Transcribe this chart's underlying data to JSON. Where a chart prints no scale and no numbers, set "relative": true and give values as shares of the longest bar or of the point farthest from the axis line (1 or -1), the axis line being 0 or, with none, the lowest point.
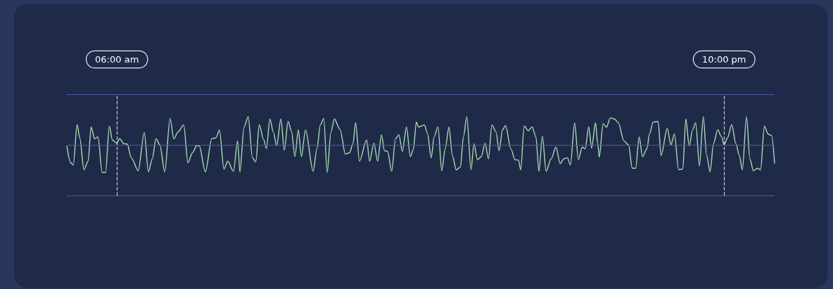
{
  "chart_data": {
    "type": "line",
    "relative": true,
    "tick_labels": "x",
    "grid": false,
    "marker": "none",
    "line_style": "solid",
    "xlim": [
      4.68,
      23.33
    ],
    "xticks": [
      {
        "value": 6,
        "label": "06:00 am"
      },
      {
        "value": 22,
        "label": "10:00 pm"
      }
    ],
    "series": [
      {
        "color": "#a8dcb5",
        "x": [
          4.68,
          4.78,
          4.85,
          4.95,
          5.02,
          5.13,
          5.24,
          5.32,
          5.41,
          5.5,
          5.61,
          5.7,
          5.8,
          5.88,
          6.0,
          6.07,
          6.19,
          6.27,
          6.38,
          6.56,
          6.72,
          6.83,
          6.93,
          7.03,
          7.13,
          7.26,
          7.4,
          7.5,
          7.61,
          7.76,
          7.87,
          7.99,
          8.1,
          8.17,
          8.33,
          8.5,
          8.61,
          8.7,
          8.82,
          8.92,
          9.07,
          9.18,
          9.24,
          9.35,
          9.46,
          9.57,
          9.66,
          9.75,
          9.86,
          9.94,
          10.03,
          10.12,
          10.21,
          10.32,
          10.41,
          10.51,
          10.6,
          10.69,
          10.78,
          10.86,
          10.97,
          11.17,
          11.27,
          11.36,
          11.45,
          11.54,
          11.64,
          11.73,
          11.88,
          12.02,
          12.13,
          12.22,
          12.29,
          12.39,
          12.58,
          12.66,
          12.77,
          12.87,
          12.97,
          13.05,
          13.13,
          13.24,
          13.34,
          13.43,
          13.52,
          13.63,
          13.73,
          13.81,
          13.89,
          13.95,
          14.1,
          14.18,
          14.28,
          14.36,
          14.46,
          14.56,
          14.65,
          14.75,
          14.84,
          14.94,
          15.05,
          15.13,
          15.22,
          15.33,
          15.41,
          15.5,
          15.6,
          15.7,
          15.79,
          15.88,
          15.99,
          16.07,
          16.16,
          16.24,
          16.38,
          16.49,
          16.58,
          16.64,
          16.73,
          16.84,
          16.94,
          17.04,
          17.12,
          17.21,
          17.31,
          17.44,
          17.57,
          17.68,
          17.77,
          17.87,
          17.95,
          18.06,
          18.16,
          18.26,
          18.34,
          18.43,
          18.51,
          18.61,
          18.67,
          18.71,
          18.81,
          18.9,
          19.0,
          19.11,
          19.21,
          19.36,
          19.48,
          19.58,
          19.67,
          19.76,
          19.85,
          19.97,
          20.03,
          20.13,
          20.26,
          20.34,
          20.5,
          20.6,
          20.69,
          20.8,
          20.91,
          20.99,
          21.08,
          21.17,
          21.25,
          21.35,
          21.45,
          21.54,
          21.63,
          21.72,
          21.83,
          21.93,
          22.0,
          22.09,
          22.2,
          22.31,
          22.4,
          22.48,
          22.59,
          22.68,
          22.77,
          22.88,
          22.96,
          23.06,
          23.16,
          23.25,
          23.33
        ],
        "values": [
          -0.04,
          -0.63,
          -0.72,
          0.72,
          0.25,
          -0.88,
          -0.58,
          0.63,
          0.22,
          0.28,
          -0.98,
          -0.98,
          0.67,
          0.17,
          0.06,
          0.22,
          0.04,
          0.03,
          -0.46,
          -0.92,
          0.44,
          -0.96,
          -0.5,
          0.22,
          0,
          -0.96,
          0.94,
          0.21,
          0.46,
          0.71,
          -0.64,
          -0.28,
          -0.03,
          -0.03,
          -0.96,
          0.22,
          0.25,
          0.53,
          -0.86,
          -0.58,
          -0.94,
          0.14,
          -0.96,
          0.63,
          1.0,
          -0.46,
          -0.61,
          0.72,
          0.21,
          -0.13,
          0.92,
          0.46,
          -0.03,
          0.92,
          -0.19,
          0.83,
          0.48,
          -0.42,
          0.53,
          -0.42,
          0.53,
          -0.94,
          -0.14,
          0.71,
          0.94,
          -0.98,
          0.46,
          0.92,
          0.54,
          -0.33,
          -0.28,
          0.04,
          0.79,
          -0.58,
          0.17,
          -0.58,
          0.06,
          -0.58,
          0.36,
          -0.21,
          -0.23,
          -0.94,
          0.21,
          0.36,
          -0.23,
          0.63,
          -0.42,
          -0.17,
          0.81,
          0.63,
          0.71,
          0.42,
          -0.46,
          0.29,
          0.64,
          -0.92,
          -0.13,
          0.63,
          -0.38,
          -0.89,
          -0.79,
          0.29,
          1.0,
          -0.88,
          0.04,
          -0.53,
          -0.42,
          0.06,
          -0.5,
          0.71,
          0.46,
          -0.21,
          0.53,
          0.69,
          -0.14,
          -0.53,
          -0.54,
          -0.89,
          0.67,
          0.5,
          0.64,
          0.28,
          -0.94,
          0.31,
          -0.94,
          -0.5,
          -0.08,
          -0.67,
          -0.5,
          -0.46,
          -0.72,
          0.78,
          -0.53,
          -0.08,
          -0.14,
          0.64,
          -0.11,
          0.78,
          0.04,
          -0.44,
          0.75,
          0.63,
          0.96,
          0.92,
          0.79,
          0.14,
          0,
          -0.83,
          -0.83,
          0.28,
          -0.42,
          -0.13,
          0.38,
          0.81,
          0.83,
          -0.38,
          0.58,
          0,
          0.39,
          -0.88,
          -0.86,
          0.92,
          -0.04,
          0.54,
          0.78,
          -0.75,
          1.0,
          -0.38,
          -0.96,
          0.04,
          0.54,
          0.29,
          0,
          0.25,
          0.72,
          0.04,
          -0.38,
          -0.89,
          1.0,
          -0.5,
          -0.92,
          -0.83,
          -0.89,
          0.67,
          0.38,
          0.33,
          -0.67
        ]
      }
    ],
    "ref_lines": [
      {
        "axis": "y",
        "value": 1.8,
        "color": "#4a5aa8",
        "line_style": "solid"
      },
      {
        "axis": "y",
        "value": 0,
        "color": "#4a5aa8",
        "line_style": "solid"
      },
      {
        "axis": "y",
        "value": -1.8,
        "color": "#4a5aa8",
        "line_style": "solid"
      },
      {
        "axis": "x",
        "value": 6,
        "color": "#c8ccd8",
        "line_style": "dashed"
      },
      {
        "axis": "x",
        "value": 22,
        "color": "#c8ccd8",
        "line_style": "dashed"
      }
    ]
  }
}
